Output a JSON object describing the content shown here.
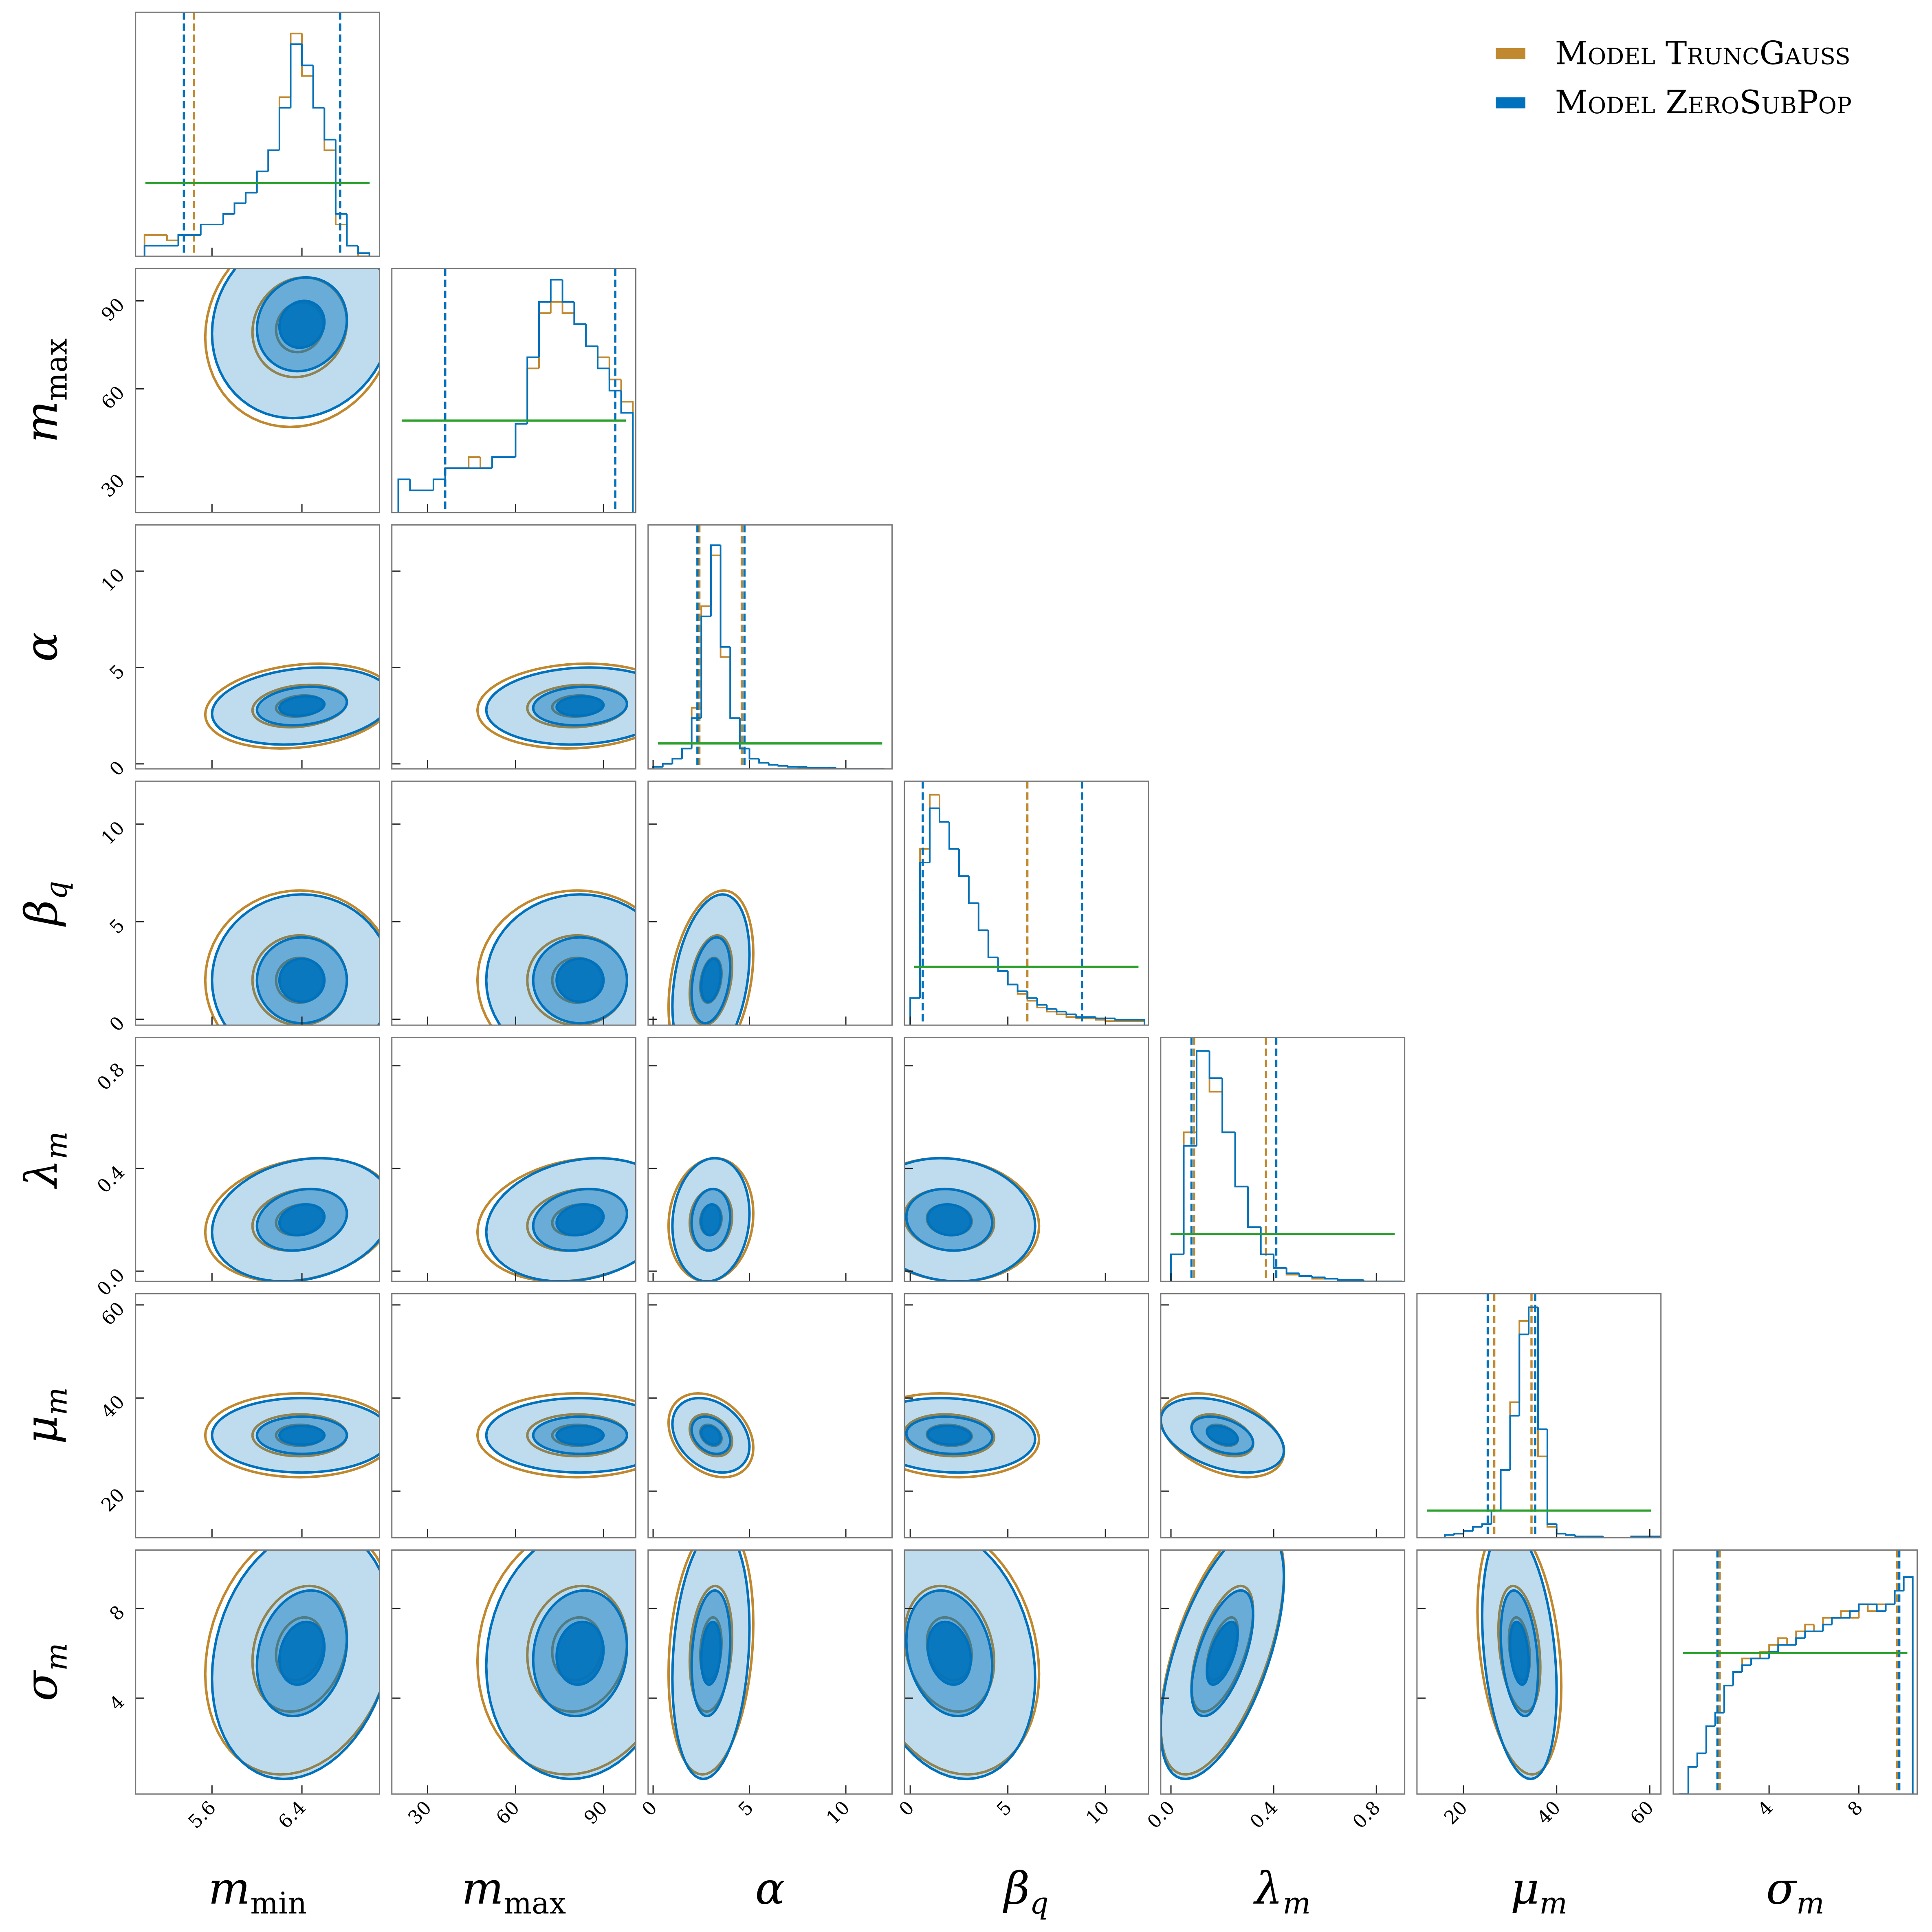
{
  "chart_data": {
    "type": "corner",
    "prior_color": "#2ca02c",
    "contour_levels": [
      2,
      1,
      0.5
    ],
    "contour_opacity": [
      0.25,
      0.45,
      0.9
    ],
    "legend": "upper right",
    "parameters": [
      {
        "symbol": "m",
        "sub": "min",
        "lim": [
          4.92,
          7.09
        ],
        "ticks": [
          5.6,
          6.4
        ],
        "bins": [
          5.0,
          5.1,
          5.2,
          5.3,
          5.4,
          5.5,
          5.6,
          5.7,
          5.8,
          5.9,
          6.0,
          6.1,
          6.2,
          6.3,
          6.4,
          6.5,
          6.6,
          6.7,
          6.8,
          6.9,
          7.0
        ],
        "hist_ymax": 23,
        "prior_level": 6.9
      },
      {
        "symbol": "m",
        "sub": "max",
        "lim": [
          17.8,
          101
        ],
        "ticks": [
          30,
          60,
          90
        ],
        "bins": [
          20,
          24,
          28,
          32,
          36,
          40,
          44,
          48,
          52,
          56,
          60,
          64,
          68,
          72,
          76,
          80,
          84,
          88,
          92,
          96,
          100
        ],
        "hist_ymax": 22,
        "prior_level": 8.3
      },
      {
        "symbol": "α",
        "lim": [
          -0.26,
          12.4
        ],
        "ticks": [
          0,
          5,
          10
        ],
        "bins": [
          0,
          0.5,
          1,
          1.5,
          2,
          2.5,
          3,
          3.5,
          4,
          4.5,
          5,
          5.5,
          6,
          6.5,
          7,
          7.5,
          8,
          8.5,
          9,
          9.5,
          10,
          10.5,
          11,
          11.5,
          12
        ],
        "hist_ymax": 24,
        "prior_level": 2.5
      },
      {
        "symbol": "β",
        "sub": "q",
        "lim": [
          -0.3,
          12.2
        ],
        "ticks": [
          0,
          5,
          10
        ],
        "bins": [
          0,
          0.5,
          1,
          1.5,
          2,
          2.5,
          3,
          3.5,
          4,
          4.5,
          5,
          5.5,
          6,
          6.5,
          7,
          7.5,
          8,
          8.5,
          9,
          9.5,
          10,
          10.5,
          11,
          11.5,
          12
        ],
        "hist_ymax": 18,
        "prior_level": 4.3
      },
      {
        "symbol": "λ",
        "sub": "m",
        "lim": [
          -0.04,
          0.91
        ],
        "ticks": [
          {
            "value": 0,
            "label": "0.0"
          },
          0.4,
          0.8
        ],
        "bins": [
          0,
          0.05,
          0.1,
          0.15,
          0.2,
          0.25,
          0.3,
          0.35,
          0.4,
          0.45,
          0.5,
          0.55,
          0.6,
          0.65,
          0.7,
          0.75,
          0.8,
          0.85,
          0.9
        ],
        "hist_ymax": 18,
        "prior_level": 3.5
      },
      {
        "symbol": "μ",
        "sub": "m",
        "lim": [
          10,
          62.4
        ],
        "ticks": [
          20,
          40,
          60
        ],
        "bins": [
          10,
          12,
          14,
          16,
          18,
          20,
          22,
          24,
          26,
          28,
          30,
          32,
          34,
          36,
          38,
          40,
          42,
          44,
          46,
          48,
          50,
          52,
          54,
          56,
          58,
          60,
          62
        ],
        "hist_ymax": 18,
        "prior_level": 2
      },
      {
        "symbol": "σ",
        "sub": "m",
        "lim": [
          -0.27,
          10.6
        ],
        "ticks": [
          4,
          8
        ],
        "bins": [
          0,
          0.4,
          0.8,
          1.2,
          1.6,
          2,
          2.4,
          2.8,
          3.2,
          3.6,
          4,
          4.4,
          4.8,
          5.2,
          5.6,
          6,
          6.4,
          6.8,
          7.2,
          7.6,
          8,
          8.4,
          8.8,
          9.2,
          9.6,
          10,
          10.4
        ],
        "hist_ymax": 18,
        "prior_level": 10.4
      }
    ],
    "series": [
      {
        "name": "Model TruncGauss",
        "color": "#c0892f",
        "filled": false,
        "means": [
          6.38,
          81,
          3,
          2,
          0.2,
          32,
          6.2
        ],
        "sds": [
          0.42,
          17,
          1.1,
          2.3,
          0.12,
          4.5,
          2.8
        ],
        "correlations": [
          0.1,
          0.2,
          0.1,
          0,
          0,
          0.3,
          0.2,
          0.2,
          0.1,
          -0.1,
          0,
          0,
          -0.3,
          -0.1,
          -0.4,
          0.2,
          0.1,
          0.2,
          -0.2,
          0.6,
          -0.3
        ],
        "quantiles": [
          [
            5.44,
            6.74
          ],
          [
            36,
            94
          ],
          [
            2.4,
            4.6
          ],
          [
            0.64,
            6.0
          ],
          [
            0.09,
            0.37
          ],
          [
            26.6,
            34.6
          ],
          [
            1.8,
            9.7
          ]
        ],
        "hist": [
          [
            2,
            2,
            1.5,
            2,
            2,
            3,
            3,
            4,
            5,
            6,
            8,
            10,
            15,
            21,
            17,
            14,
            10,
            3,
            1,
            0
          ],
          [
            3,
            2,
            2,
            3,
            4,
            4,
            5,
            4,
            5,
            5,
            8,
            13,
            18,
            19,
            18,
            17,
            15,
            14,
            12,
            10
          ],
          [
            0.2,
            0.5,
            1,
            2,
            6,
            16,
            21,
            11,
            5,
            2,
            1,
            0.6,
            0.4,
            0.3,
            0.2,
            0.1,
            0.1,
            0.1,
            0,
            0,
            0,
            0,
            0,
            0
          ],
          [
            2,
            13,
            17,
            15,
            13,
            11,
            9,
            7,
            5,
            4,
            3,
            2.3,
            1.8,
            1.3,
            1,
            0.8,
            0.6,
            0.5,
            0.5,
            0.4,
            0.3,
            0.3,
            0.3,
            0.3
          ],
          [
            2,
            11,
            17,
            14,
            11,
            7,
            4,
            2,
            1,
            0.5,
            0.4,
            0.2,
            0.2,
            0.1,
            0,
            0,
            0,
            0
          ],
          [
            0,
            0,
            0,
            0.2,
            0.3,
            0.5,
            0.8,
            1,
            2,
            5,
            10,
            16,
            17,
            6,
            0.8,
            0.3,
            0.2,
            0.1,
            0.1,
            0.1,
            0,
            0,
            0,
            0.1,
            0.1,
            0.1
          ],
          [
            0,
            2,
            3,
            5,
            6,
            8,
            9,
            10,
            10,
            10.5,
            11,
            11.5,
            11,
            12,
            12.5,
            12,
            13,
            13,
            13.5,
            13,
            14,
            13.5,
            14,
            14,
            15,
            16
          ]
        ]
      },
      {
        "name": "Model ZeroSubPop",
        "color": "#0072bd",
        "filled": true,
        "means": [
          6.4,
          82,
          3,
          2,
          0.2,
          32,
          6
        ],
        "sds": [
          0.4,
          16,
          1,
          2.2,
          0.12,
          4,
          2.8
        ],
        "correlations": [
          0.1,
          0.2,
          0.1,
          0,
          0,
          0.3,
          0.2,
          0.2,
          0.1,
          -0.1,
          0,
          0,
          -0.3,
          -0.1,
          -0.4,
          0.2,
          0.1,
          0.2,
          -0.2,
          0.6,
          -0.3
        ],
        "quantiles": [
          [
            5.35,
            6.74
          ],
          [
            36,
            94
          ],
          [
            2.3,
            4.74
          ],
          [
            0.64,
            8.8
          ],
          [
            0.08,
            0.41
          ],
          [
            25.2,
            35.4
          ],
          [
            1.7,
            9.8
          ]
        ],
        "hist": [
          [
            1,
            1,
            1,
            2,
            2,
            3,
            3,
            4,
            5,
            6,
            8,
            10,
            14,
            20,
            18,
            14,
            11,
            4,
            1,
            0.3
          ],
          [
            3,
            2,
            2,
            3,
            4,
            4,
            4,
            4,
            5,
            5,
            8,
            14,
            19,
            21,
            19,
            17,
            15,
            13,
            11,
            9
          ],
          [
            0.2,
            0.5,
            1,
            2,
            5,
            15,
            22,
            12,
            5,
            2,
            1,
            0.6,
            0.4,
            0.3,
            0.2,
            0.2,
            0.1,
            0.1,
            0.1,
            0,
            0,
            0,
            0,
            0
          ],
          [
            2,
            12,
            16,
            15,
            13,
            11,
            9,
            7,
            5,
            4,
            3,
            2.5,
            2,
            1.5,
            1.2,
            1,
            0.8,
            0.6,
            0.6,
            0.5,
            0.5,
            0.4,
            0.4,
            0.4
          ],
          [
            2,
            10,
            17,
            15,
            11,
            7,
            4,
            2,
            1,
            0.6,
            0.4,
            0.3,
            0.2,
            0.1,
            0.1,
            0,
            0,
            0
          ],
          [
            0,
            0,
            0,
            0.2,
            0.3,
            0.5,
            0.8,
            1,
            2,
            5,
            9,
            15,
            17,
            8,
            1,
            0.3,
            0.2,
            0.1,
            0.1,
            0.1,
            0,
            0,
            0,
            0.1,
            0.1,
            0.1
          ],
          [
            0,
            2,
            3,
            5,
            6,
            8,
            9,
            9.5,
            10,
            10,
            10.5,
            11,
            11,
            11.5,
            12,
            12,
            12.5,
            13,
            13,
            13.5,
            14,
            14,
            13.5,
            14,
            15,
            16
          ]
        ]
      }
    ]
  }
}
